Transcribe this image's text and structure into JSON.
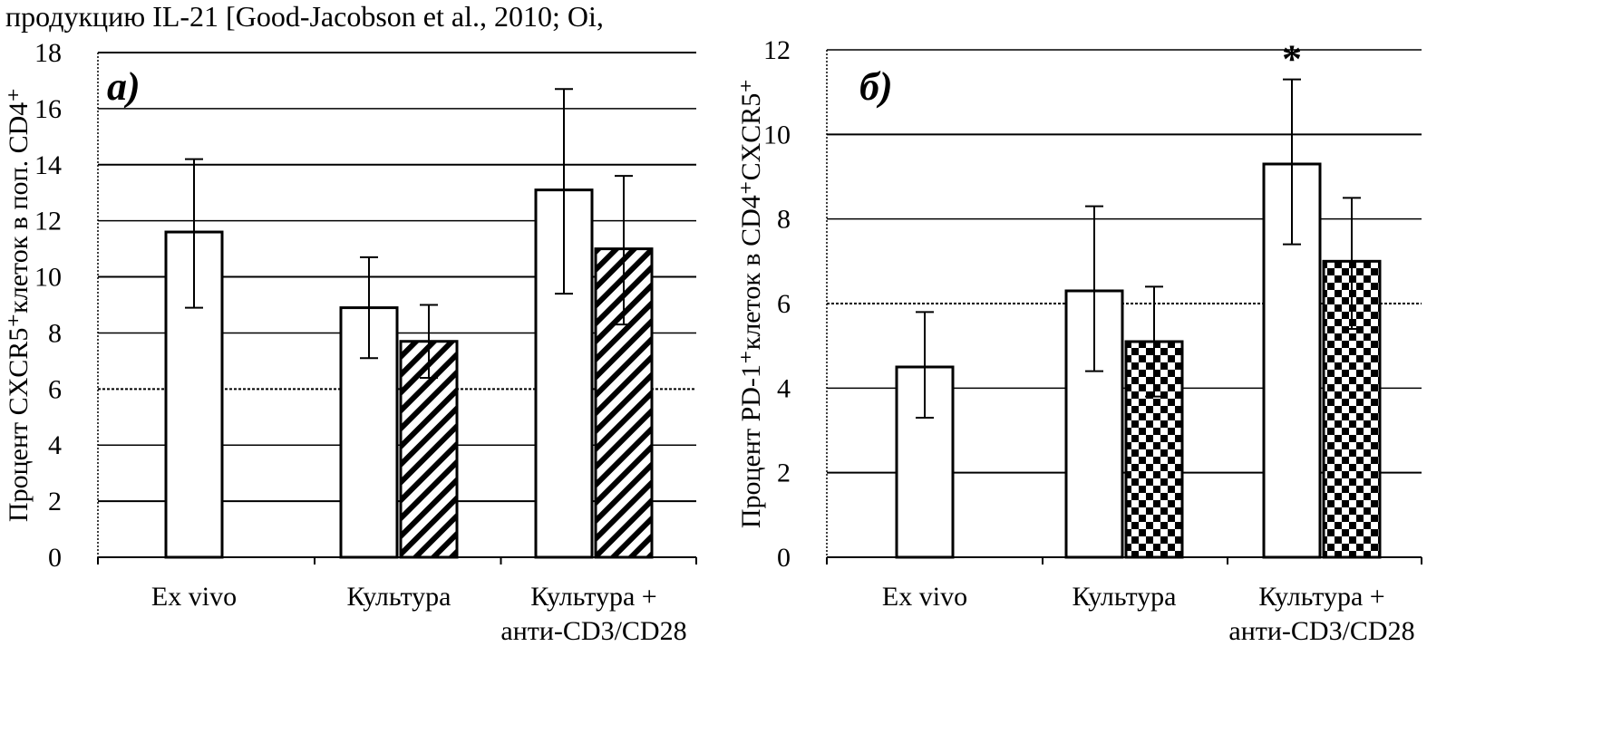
{
  "page": {
    "header_text": "продукцию IL-21 [Good-Jacobson et al., 2010; Oi,"
  },
  "chart_data": [
    {
      "type": "bar",
      "panel_label": "а)",
      "ylabel": "Процент CXCR5⁺клеток в поп. CD4⁺",
      "xlabel": "",
      "ylim": [
        0,
        18
      ],
      "yticks": [
        0,
        2,
        4,
        6,
        8,
        10,
        12,
        14,
        16,
        18
      ],
      "grid": true,
      "categories": [
        [
          "Ex vivo"
        ],
        [
          "Культура"
        ],
        [
          "Культура +",
          "анти-CD3/CD28"
        ]
      ],
      "bars": [
        {
          "category": 0,
          "slot": 0,
          "fill": "white",
          "value": 11.6,
          "err_low": 8.9,
          "err_high": 14.2
        },
        {
          "category": 1,
          "slot": 0,
          "fill": "white",
          "value": 8.9,
          "err_low": 7.1,
          "err_high": 10.7
        },
        {
          "category": 1,
          "slot": 1,
          "fill": "hatch",
          "value": 7.7,
          "err_low": 6.4,
          "err_high": 9.0
        },
        {
          "category": 2,
          "slot": 0,
          "fill": "white",
          "value": 13.1,
          "err_low": 9.4,
          "err_high": 16.7
        },
        {
          "category": 2,
          "slot": 1,
          "fill": "hatch",
          "value": 11.0,
          "err_low": 8.3,
          "err_high": 13.6
        }
      ],
      "annotations": []
    },
    {
      "type": "bar",
      "panel_label": "б)",
      "ylabel": "Процент PD-1⁺клеток в CD4⁺CXCR5⁺",
      "xlabel": "",
      "ylim": [
        0,
        12
      ],
      "yticks": [
        0,
        2,
        4,
        6,
        8,
        10,
        12
      ],
      "grid": true,
      "categories": [
        [
          "Ex vivo"
        ],
        [
          "Культура"
        ],
        [
          "Культура +",
          "анти-CD3/CD28"
        ]
      ],
      "bars": [
        {
          "category": 0,
          "slot": 0,
          "fill": "white",
          "value": 4.5,
          "err_low": 3.3,
          "err_high": 5.8
        },
        {
          "category": 1,
          "slot": 0,
          "fill": "white",
          "value": 6.3,
          "err_low": 4.4,
          "err_high": 8.3
        },
        {
          "category": 1,
          "slot": 1,
          "fill": "checker",
          "value": 5.1,
          "err_low": 3.8,
          "err_high": 6.4
        },
        {
          "category": 2,
          "slot": 0,
          "fill": "white",
          "value": 9.3,
          "err_low": 7.4,
          "err_high": 11.3
        },
        {
          "category": 2,
          "slot": 1,
          "fill": "checker",
          "value": 7.0,
          "err_low": 5.4,
          "err_high": 8.5
        }
      ],
      "annotations": [
        {
          "category": 2,
          "slot": 0,
          "text": "*"
        }
      ]
    }
  ]
}
